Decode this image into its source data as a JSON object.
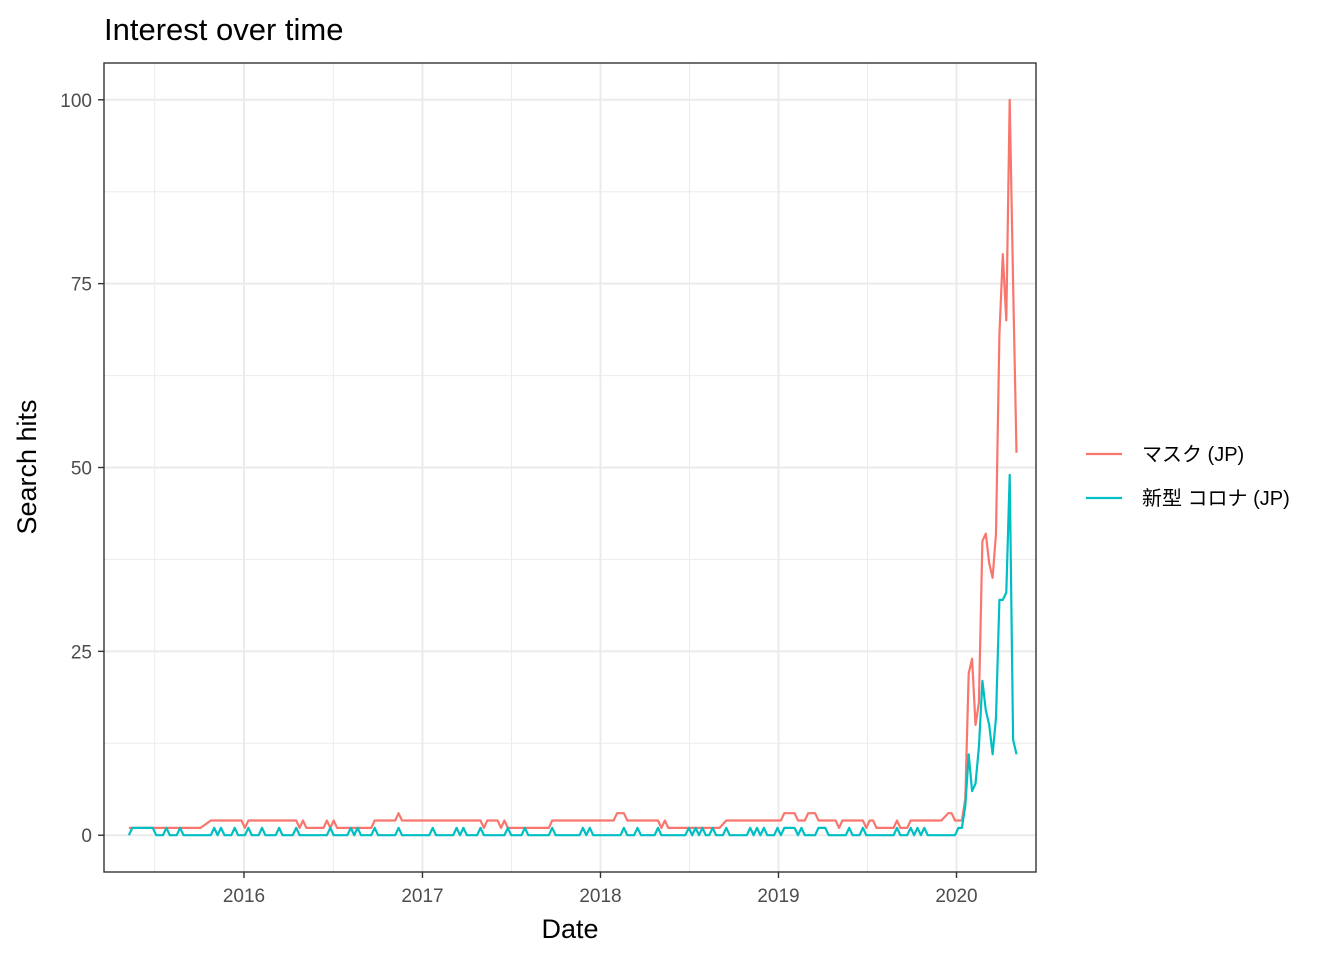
{
  "chart_data": {
    "type": "line",
    "title": "Interest over time",
    "xlabel": "Date",
    "ylabel": "Search hits",
    "xlim": [
      "2015-03-20",
      "2020-06-12"
    ],
    "ylim": [
      -5,
      105
    ],
    "x_ticks": [
      "2016-01-01",
      "2017-01-01",
      "2018-01-01",
      "2019-01-01",
      "2020-01-01"
    ],
    "x_tick_labels": [
      "2016",
      "2017",
      "2018",
      "2019",
      "2020"
    ],
    "y_ticks": [
      0,
      25,
      50,
      75,
      100
    ],
    "y_tick_labels": [
      "0",
      "25",
      "50",
      "75",
      "100"
    ],
    "grid": true,
    "legend_position": "right",
    "series": [
      {
        "name": "マスク (JP)",
        "color": "#F8766D",
        "points": [
          [
            "2015-05-10",
            1
          ],
          [
            "2015-10-04",
            1
          ],
          [
            "2015-10-25",
            2
          ],
          [
            "2015-12-27",
            2
          ],
          [
            "2016-01-03",
            1
          ],
          [
            "2016-01-10",
            2
          ],
          [
            "2016-04-17",
            2
          ],
          [
            "2016-04-24",
            1
          ],
          [
            "2016-05-01",
            2
          ],
          [
            "2016-05-08",
            1
          ],
          [
            "2016-06-12",
            1
          ],
          [
            "2016-06-19",
            2
          ],
          [
            "2016-06-26",
            1
          ],
          [
            "2016-07-03",
            2
          ],
          [
            "2016-07-10",
            1
          ],
          [
            "2016-09-18",
            1
          ],
          [
            "2016-09-25",
            2
          ],
          [
            "2016-11-06",
            2
          ],
          [
            "2016-11-13",
            3
          ],
          [
            "2016-11-20",
            2
          ],
          [
            "2017-04-30",
            2
          ],
          [
            "2017-05-07",
            1
          ],
          [
            "2017-05-14",
            2
          ],
          [
            "2017-06-04",
            2
          ],
          [
            "2017-06-11",
            1
          ],
          [
            "2017-06-18",
            2
          ],
          [
            "2017-06-25",
            1
          ],
          [
            "2017-09-17",
            1
          ],
          [
            "2017-09-24",
            2
          ],
          [
            "2018-01-28",
            2
          ],
          [
            "2018-02-04",
            3
          ],
          [
            "2018-02-18",
            3
          ],
          [
            "2018-02-25",
            2
          ],
          [
            "2018-04-29",
            2
          ],
          [
            "2018-05-06",
            1
          ],
          [
            "2018-05-13",
            2
          ],
          [
            "2018-05-20",
            1
          ],
          [
            "2018-09-02",
            1
          ],
          [
            "2018-09-16",
            2
          ],
          [
            "2019-01-06",
            2
          ],
          [
            "2019-01-13",
            3
          ],
          [
            "2019-02-03",
            3
          ],
          [
            "2019-02-10",
            2
          ],
          [
            "2019-02-24",
            2
          ],
          [
            "2019-03-03",
            3
          ],
          [
            "2019-03-17",
            3
          ],
          [
            "2019-03-24",
            2
          ],
          [
            "2019-04-28",
            2
          ],
          [
            "2019-05-05",
            1
          ],
          [
            "2019-05-12",
            2
          ],
          [
            "2019-06-23",
            2
          ],
          [
            "2019-06-30",
            1
          ],
          [
            "2019-07-07",
            2
          ],
          [
            "2019-07-14",
            2
          ],
          [
            "2019-07-21",
            1
          ],
          [
            "2019-08-25",
            1
          ],
          [
            "2019-09-01",
            2
          ],
          [
            "2019-09-08",
            1
          ],
          [
            "2019-09-22",
            1
          ],
          [
            "2019-09-29",
            2
          ],
          [
            "2019-12-01",
            2
          ],
          [
            "2019-12-15",
            3
          ],
          [
            "2019-12-22",
            3
          ],
          [
            "2019-12-29",
            2
          ],
          [
            "2020-01-12",
            2
          ],
          [
            "2020-01-19",
            5
          ],
          [
            "2020-01-26",
            22
          ],
          [
            "2020-02-02",
            24
          ],
          [
            "2020-02-09",
            15
          ],
          [
            "2020-02-16",
            18
          ],
          [
            "2020-02-23",
            40
          ],
          [
            "2020-03-01",
            41
          ],
          [
            "2020-03-08",
            37
          ],
          [
            "2020-03-15",
            35
          ],
          [
            "2020-03-22",
            41
          ],
          [
            "2020-03-29",
            68
          ],
          [
            "2020-04-05",
            79
          ],
          [
            "2020-04-12",
            70
          ],
          [
            "2020-04-19",
            100
          ],
          [
            "2020-04-26",
            75
          ],
          [
            "2020-05-03",
            52
          ]
        ]
      },
      {
        "name": "新型 コロナ (JP)",
        "color": "#00BFC4",
        "points": [
          [
            "2015-05-10",
            0
          ],
          [
            "2015-05-17",
            1
          ],
          [
            "2015-06-28",
            1
          ],
          [
            "2015-07-05",
            0
          ],
          [
            "2015-07-19",
            0
          ],
          [
            "2015-07-26",
            1
          ],
          [
            "2015-08-02",
            0
          ],
          [
            "2015-08-16",
            0
          ],
          [
            "2015-08-23",
            1
          ],
          [
            "2015-08-30",
            0
          ],
          [
            "2015-10-25",
            0
          ],
          [
            "2015-11-01",
            1
          ],
          [
            "2015-11-08",
            0
          ],
          [
            "2015-11-15",
            1
          ],
          [
            "2015-11-22",
            0
          ],
          [
            "2015-12-06",
            0
          ],
          [
            "2015-12-13",
            1
          ],
          [
            "2015-12-20",
            0
          ],
          [
            "2016-01-03",
            0
          ],
          [
            "2016-01-10",
            1
          ],
          [
            "2016-01-17",
            0
          ],
          [
            "2016-01-31",
            0
          ],
          [
            "2016-02-07",
            1
          ],
          [
            "2016-02-14",
            0
          ],
          [
            "2016-03-06",
            0
          ],
          [
            "2016-03-13",
            1
          ],
          [
            "2016-03-20",
            0
          ],
          [
            "2016-04-10",
            0
          ],
          [
            "2016-04-17",
            1
          ],
          [
            "2016-04-24",
            0
          ],
          [
            "2016-06-19",
            0
          ],
          [
            "2016-06-26",
            1
          ],
          [
            "2016-07-03",
            0
          ],
          [
            "2016-07-31",
            0
          ],
          [
            "2016-08-07",
            1
          ],
          [
            "2016-08-14",
            0
          ],
          [
            "2016-08-21",
            1
          ],
          [
            "2016-08-28",
            0
          ],
          [
            "2016-09-18",
            0
          ],
          [
            "2016-09-25",
            1
          ],
          [
            "2016-10-02",
            0
          ],
          [
            "2016-11-06",
            0
          ],
          [
            "2016-11-13",
            1
          ],
          [
            "2016-11-20",
            0
          ],
          [
            "2017-01-15",
            0
          ],
          [
            "2017-01-22",
            1
          ],
          [
            "2017-01-29",
            0
          ],
          [
            "2017-03-05",
            0
          ],
          [
            "2017-03-12",
            1
          ],
          [
            "2017-03-19",
            0
          ],
          [
            "2017-03-26",
            1
          ],
          [
            "2017-04-02",
            0
          ],
          [
            "2017-04-23",
            0
          ],
          [
            "2017-04-30",
            1
          ],
          [
            "2017-05-07",
            0
          ],
          [
            "2017-06-18",
            0
          ],
          [
            "2017-06-25",
            1
          ],
          [
            "2017-07-02",
            0
          ],
          [
            "2017-07-23",
            0
          ],
          [
            "2017-07-30",
            1
          ],
          [
            "2017-08-06",
            0
          ],
          [
            "2017-09-17",
            0
          ],
          [
            "2017-09-24",
            1
          ],
          [
            "2017-10-01",
            0
          ],
          [
            "2017-11-19",
            0
          ],
          [
            "2017-11-26",
            1
          ],
          [
            "2017-12-03",
            0
          ],
          [
            "2017-12-10",
            1
          ],
          [
            "2017-12-17",
            0
          ],
          [
            "2018-02-11",
            0
          ],
          [
            "2018-02-18",
            1
          ],
          [
            "2018-02-25",
            0
          ],
          [
            "2018-03-11",
            0
          ],
          [
            "2018-03-18",
            1
          ],
          [
            "2018-03-25",
            0
          ],
          [
            "2018-04-22",
            0
          ],
          [
            "2018-04-29",
            1
          ],
          [
            "2018-05-06",
            0
          ],
          [
            "2018-06-24",
            0
          ],
          [
            "2018-07-01",
            1
          ],
          [
            "2018-07-08",
            0
          ],
          [
            "2018-07-15",
            1
          ],
          [
            "2018-07-22",
            0
          ],
          [
            "2018-07-29",
            1
          ],
          [
            "2018-08-05",
            0
          ],
          [
            "2018-08-12",
            0
          ],
          [
            "2018-08-19",
            1
          ],
          [
            "2018-08-26",
            0
          ],
          [
            "2018-09-09",
            0
          ],
          [
            "2018-09-16",
            1
          ],
          [
            "2018-09-23",
            0
          ],
          [
            "2018-10-28",
            0
          ],
          [
            "2018-11-04",
            1
          ],
          [
            "2018-11-11",
            0
          ],
          [
            "2018-11-18",
            1
          ],
          [
            "2018-11-25",
            0
          ],
          [
            "2018-12-02",
            1
          ],
          [
            "2018-12-09",
            0
          ],
          [
            "2018-12-23",
            0
          ],
          [
            "2018-12-30",
            1
          ],
          [
            "2019-01-06",
            0
          ],
          [
            "2019-01-13",
            1
          ],
          [
            "2019-02-03",
            1
          ],
          [
            "2019-02-10",
            0
          ],
          [
            "2019-02-17",
            1
          ],
          [
            "2019-02-24",
            0
          ],
          [
            "2019-03-17",
            0
          ],
          [
            "2019-03-24",
            1
          ],
          [
            "2019-04-07",
            1
          ],
          [
            "2019-04-14",
            0
          ],
          [
            "2019-05-19",
            0
          ],
          [
            "2019-05-26",
            1
          ],
          [
            "2019-06-02",
            0
          ],
          [
            "2019-06-16",
            0
          ],
          [
            "2019-06-23",
            1
          ],
          [
            "2019-06-30",
            0
          ],
          [
            "2019-08-25",
            0
          ],
          [
            "2019-09-01",
            1
          ],
          [
            "2019-09-08",
            0
          ],
          [
            "2019-09-22",
            0
          ],
          [
            "2019-09-29",
            1
          ],
          [
            "2019-10-06",
            0
          ],
          [
            "2019-10-13",
            1
          ],
          [
            "2019-10-20",
            0
          ],
          [
            "2019-10-27",
            1
          ],
          [
            "2019-11-03",
            0
          ],
          [
            "2019-12-29",
            0
          ],
          [
            "2020-01-05",
            1
          ],
          [
            "2020-01-12",
            1
          ],
          [
            "2020-01-19",
            4
          ],
          [
            "2020-01-26",
            11
          ],
          [
            "2020-02-02",
            6
          ],
          [
            "2020-02-09",
            7
          ],
          [
            "2020-02-16",
            12
          ],
          [
            "2020-02-23",
            21
          ],
          [
            "2020-03-01",
            17
          ],
          [
            "2020-03-08",
            15
          ],
          [
            "2020-03-15",
            11
          ],
          [
            "2020-03-22",
            16
          ],
          [
            "2020-03-29",
            32
          ],
          [
            "2020-04-05",
            32
          ],
          [
            "2020-04-12",
            33
          ],
          [
            "2020-04-19",
            49
          ],
          [
            "2020-04-26",
            13
          ],
          [
            "2020-05-03",
            11
          ]
        ]
      }
    ]
  }
}
